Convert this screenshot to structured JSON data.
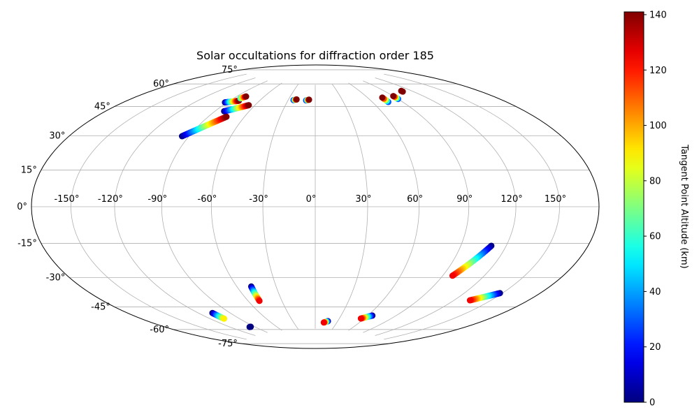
{
  "chart_data": {
    "type": "scatter",
    "projection": "hammer",
    "title": "Solar occultations for diffraction order 185",
    "grid": true,
    "xlim": [
      -180,
      180
    ],
    "ylim": [
      -90,
      90
    ],
    "lon_ticks": [
      {
        "value": -150,
        "label": "-150°"
      },
      {
        "value": -120,
        "label": "-120°"
      },
      {
        "value": -90,
        "label": "-90°"
      },
      {
        "value": -60,
        "label": "-60°"
      },
      {
        "value": -30,
        "label": "-30°"
      },
      {
        "value": 0,
        "label": "0°"
      },
      {
        "value": 30,
        "label": "30°"
      },
      {
        "value": 60,
        "label": "60°"
      },
      {
        "value": 90,
        "label": "90°"
      },
      {
        "value": 120,
        "label": "120°"
      },
      {
        "value": 150,
        "label": "150°"
      }
    ],
    "lat_ticks": [
      {
        "value": 75,
        "label": "75°"
      },
      {
        "value": 60,
        "label": "60°"
      },
      {
        "value": 45,
        "label": "45°"
      },
      {
        "value": 30,
        "label": "30°"
      },
      {
        "value": 15,
        "label": "15°"
      },
      {
        "value": 0,
        "label": "0°"
      },
      {
        "value": -15,
        "label": "-15°"
      },
      {
        "value": -30,
        "label": "-30°"
      },
      {
        "value": -45,
        "label": "-45°"
      },
      {
        "value": -60,
        "label": "-60°"
      },
      {
        "value": -75,
        "label": "-75°"
      }
    ],
    "colorbar": {
      "label": "Tangent Point Altitude (km)",
      "colormap": "jet",
      "min": 0,
      "max": 141,
      "ticks": [
        0,
        20,
        40,
        60,
        80,
        100,
        120,
        140
      ]
    },
    "tracks": [
      {
        "start": [
          -95,
          38
        ],
        "end": [
          -75,
          51
        ],
        "alt_start": 0,
        "alt_end": 141,
        "n": 40
      },
      {
        "start": [
          -82,
          54
        ],
        "end": [
          -66,
          59
        ],
        "alt_start": 0,
        "alt_end": 141,
        "n": 26
      },
      {
        "start": [
          -92,
          59
        ],
        "end": [
          -81,
          61
        ],
        "alt_start": 0,
        "alt_end": 141,
        "n": 20
      },
      {
        "start": [
          -83,
          62.5
        ],
        "end": [
          -80,
          64
        ],
        "alt_start": 60,
        "alt_end": 141,
        "n": 6
      },
      {
        "start": [
          -24,
          64
        ],
        "end": [
          -21,
          64.5
        ],
        "alt_start": 20,
        "alt_end": 141,
        "n": 5
      },
      {
        "start": [
          -10,
          64
        ],
        "end": [
          -7,
          64.5
        ],
        "alt_start": 20,
        "alt_end": 141,
        "n": 5
      },
      {
        "start": [
          76,
          60.5
        ],
        "end": [
          76,
          63.5
        ],
        "alt_start": 30,
        "alt_end": 141,
        "n": 5
      },
      {
        "start": [
          90,
          61.5
        ],
        "end": [
          90,
          63.5
        ],
        "alt_start": 30,
        "alt_end": 141,
        "n": 5
      },
      {
        "start": [
          109,
          65
        ],
        "end": [
          109,
          65.5
        ],
        "alt_start": 141,
        "alt_end": 141,
        "n": 2
      },
      {
        "start": [
          110,
          -20
        ],
        "end": [
          97,
          -37
        ],
        "alt_start": 0,
        "alt_end": 125,
        "n": 32
      },
      {
        "start": [
          148,
          -42
        ],
        "end": [
          133,
          -48
        ],
        "alt_start": 0,
        "alt_end": 125,
        "n": 32
      },
      {
        "start": [
          -49,
          -46
        ],
        "end": [
          -50,
          -55
        ],
        "alt_start": 0,
        "alt_end": 125,
        "n": 16
      },
      {
        "start": [
          -107,
          -59
        ],
        "end": [
          -106,
          -63
        ],
        "alt_start": 0,
        "alt_end": 90,
        "n": 10
      },
      {
        "start": [
          -95,
          -70
        ],
        "end": [
          -97,
          -70
        ],
        "alt_start": 0,
        "alt_end": 0,
        "n": 4
      },
      {
        "start": [
          17,
          -69.5
        ],
        "end": [
          12,
          -70.5
        ],
        "alt_start": 0,
        "alt_end": 125,
        "n": 12
      },
      {
        "start": [
          65,
          -64
        ],
        "end": [
          56,
          -66.5
        ],
        "alt_start": 0,
        "alt_end": 125,
        "n": 16
      }
    ]
  }
}
